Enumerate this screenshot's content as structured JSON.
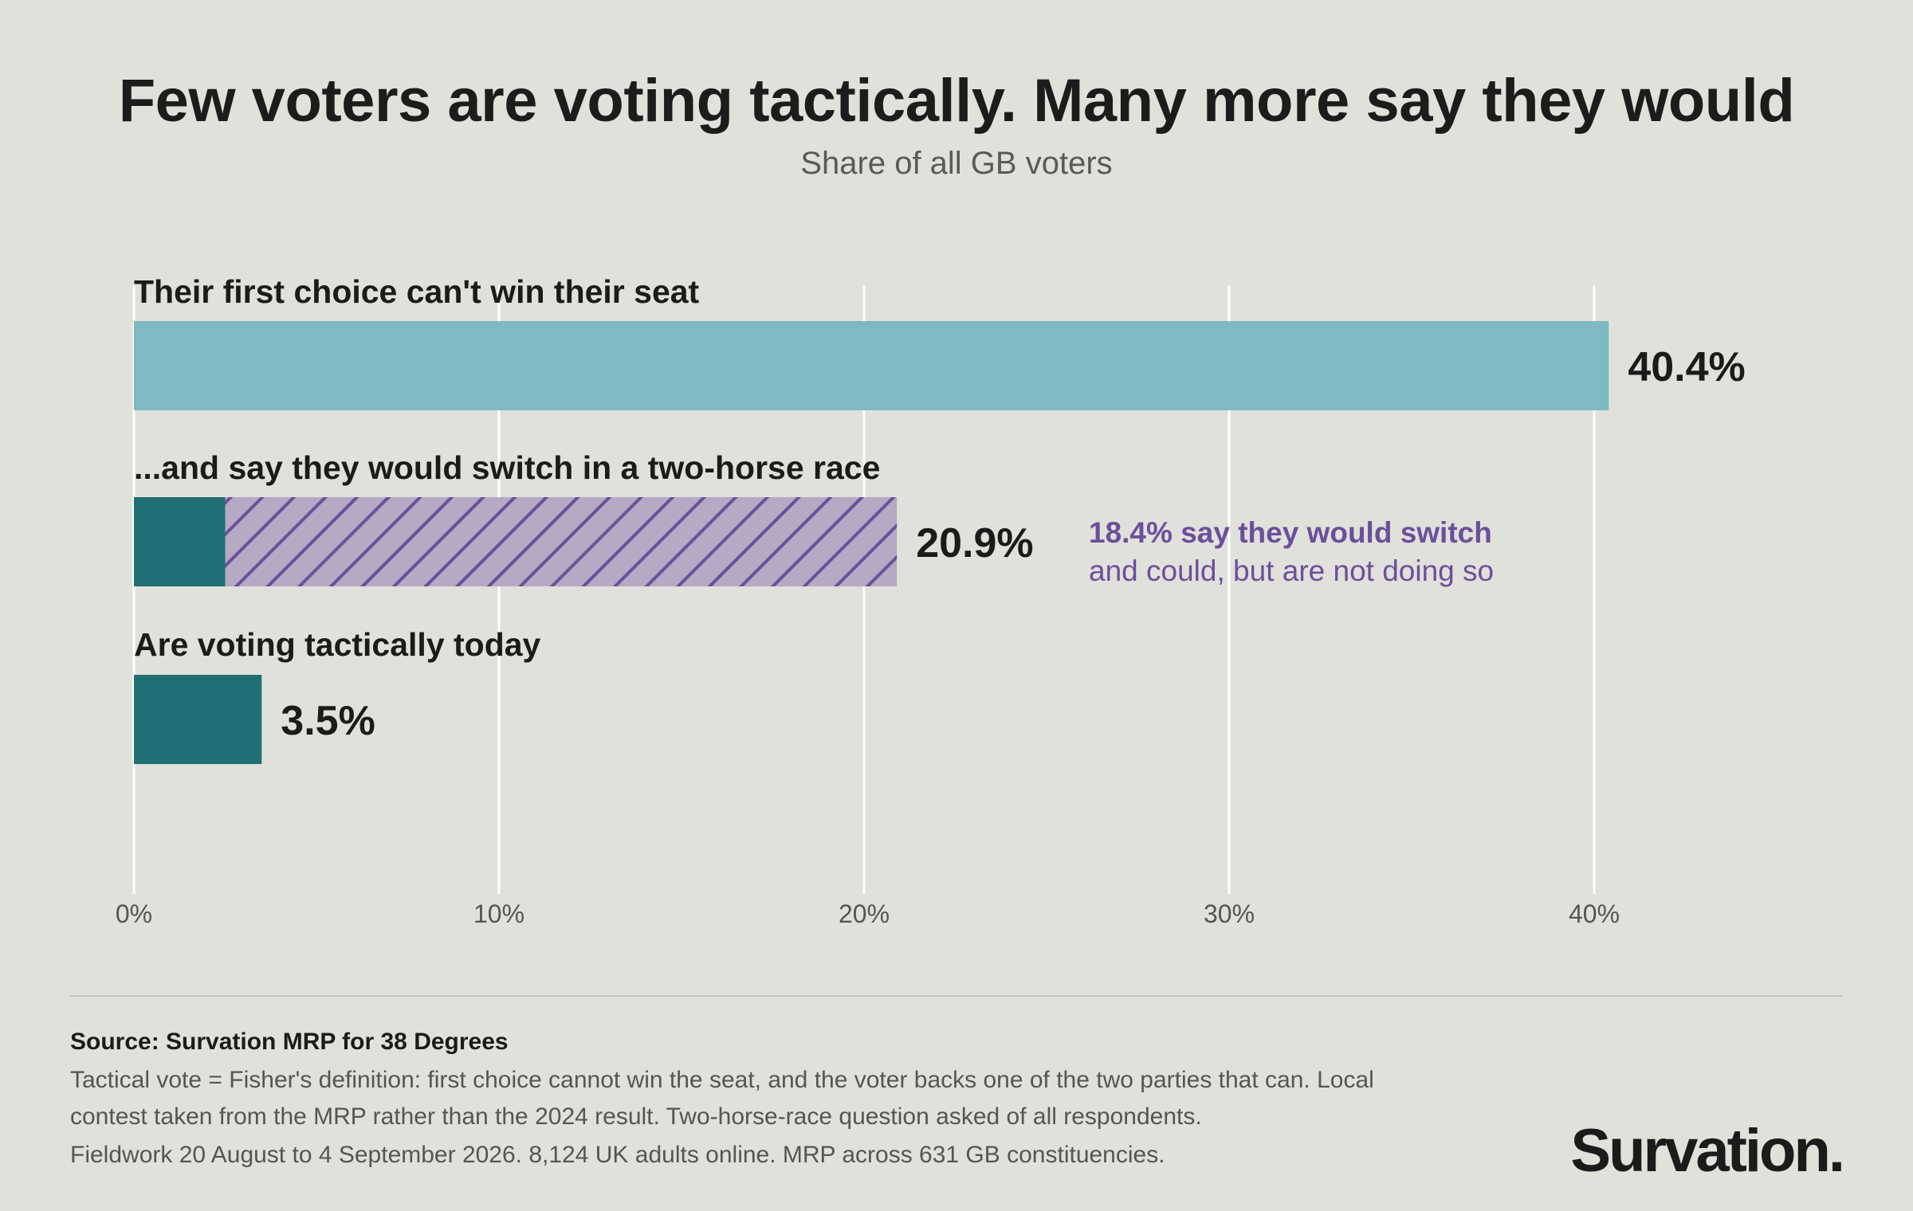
{
  "title": "Few voters are voting tactically. Many more say they would",
  "subtitle": "Share of all GB voters",
  "chart_data": {
    "type": "bar",
    "orientation": "horizontal",
    "title": "Few voters are voting tactically. Many more say they would",
    "subtitle": "Share of all GB voters",
    "xlabel": "",
    "ylabel": "",
    "xlim": [
      0,
      40
    ],
    "x_ticks": [
      0,
      10,
      20,
      30,
      40
    ],
    "x_tick_labels": [
      "0%",
      "10%",
      "20%",
      "30%",
      "40%"
    ],
    "grid": "vertical",
    "legend": "none",
    "categories": [
      "Their first choice can't win their seat",
      "...and say they would switch in a two-horse race",
      "Are voting tactically today"
    ],
    "bars": [
      {
        "label": "Their first choice can't win their seat",
        "value_label": "40.4%",
        "segments": [
          {
            "value": 40.4,
            "color": "#7fb9c2",
            "pattern": "solid"
          }
        ]
      },
      {
        "label": "...and say they would switch in a two-horse race",
        "value_label": "20.9%",
        "segments": [
          {
            "value": 2.5,
            "color": "#206f74",
            "pattern": "solid"
          },
          {
            "value": 18.4,
            "color": "#b5a9c4",
            "pattern": "hatched",
            "stripe_color": "#6b4f9c"
          }
        ]
      },
      {
        "label": "Are voting tactically today",
        "value_label": "3.5%",
        "segments": [
          {
            "value": 3.5,
            "color": "#206f74",
            "pattern": "solid"
          }
        ]
      }
    ],
    "annotation": {
      "bold": "18.4% say they would switch",
      "regular": "and could, but are not doing so",
      "color": "#6b4f9c"
    }
  },
  "footer": {
    "source": "Source: Survation MRP for 38 Degrees",
    "notes": [
      "Tactical vote = Fisher's definition: first choice cannot win the seat, and the voter backs one of the two parties that can. Local",
      "contest taken from the MRP rather than the 2024 result. Two-horse-race question asked of all respondents.",
      "Fieldwork 20 August to 4 September 2026. 8,124 UK adults online. MRP across 631 GB constituencies."
    ],
    "brand": "Survation."
  },
  "colors": {
    "background": "#e0e1da",
    "light_teal": "#7fb9c2",
    "dark_teal": "#206f74",
    "purple": "#6b4f9c",
    "hatch_fill": "#b5a9c4",
    "gridline": "#ffffff"
  }
}
